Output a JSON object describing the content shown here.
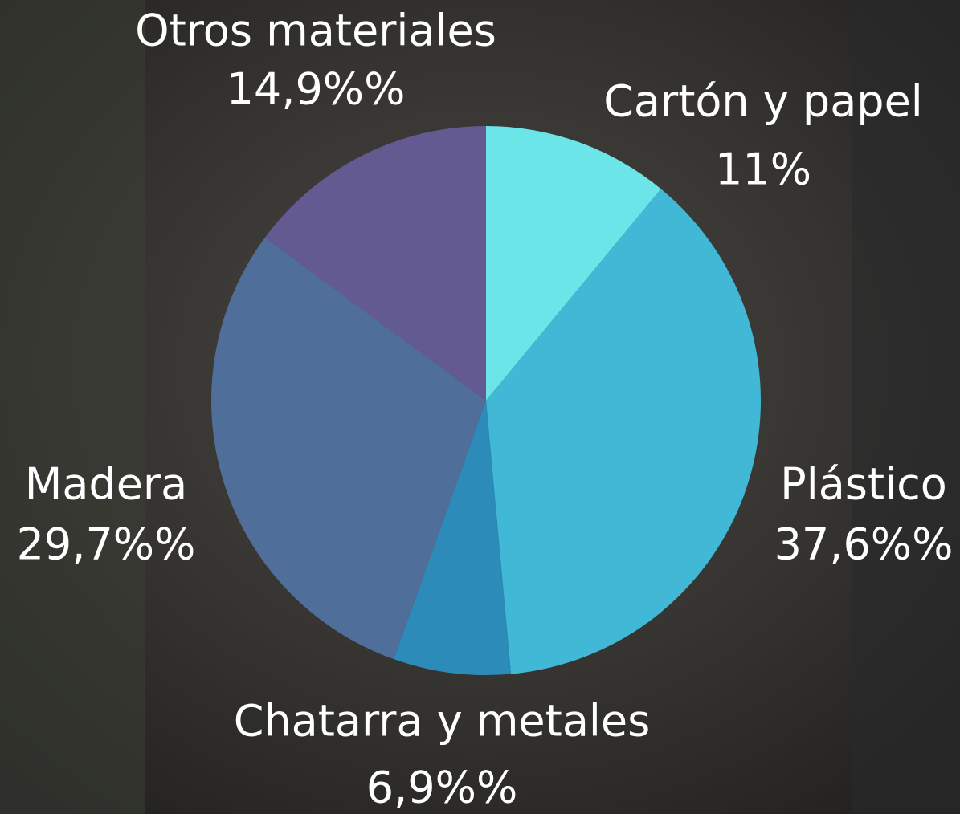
{
  "chart_data": {
    "type": "pie",
    "categories": [
      "Cartón y papel",
      "Plástico",
      "Chatarra y metales",
      "Madera",
      "Otros materiales"
    ],
    "values": [
      11,
      37.6,
      6.9,
      29.7,
      14.9
    ],
    "value_labels": [
      "11%",
      "37,6%%",
      "6,9%%",
      "29,7%%",
      "14,9%%"
    ],
    "colors": [
      "#6ce5e8",
      "#41b8d5",
      "#2d8bba",
      "#506e9a",
      "#635a92"
    ]
  }
}
